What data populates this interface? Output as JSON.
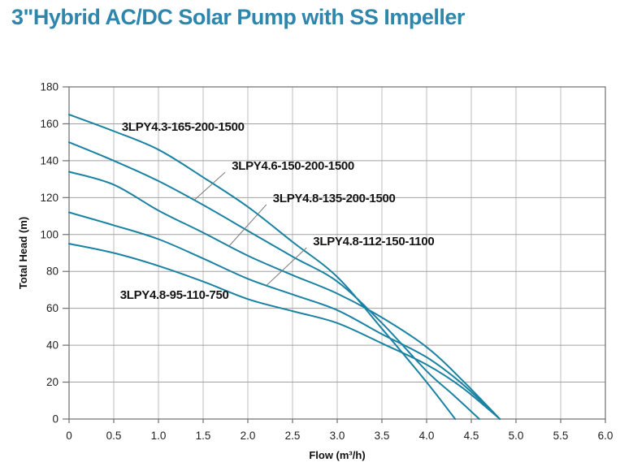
{
  "page": {
    "title": "3\"Hybrid AC/DC Solar Pump with SS Impeller",
    "title_color": "#2e86ac",
    "background_color": "#ffffff"
  },
  "chart_data": {
    "type": "line",
    "title": "",
    "xlabel": "Flow (m³/h)",
    "ylabel": "Total Head (m)",
    "xlim": [
      0,
      6.0
    ],
    "ylim": [
      0,
      180
    ],
    "x_ticks": [
      "0",
      "0.5",
      "1.0",
      "1.5",
      "2.0",
      "2.5",
      "3.0",
      "3.5",
      "4.0",
      "4.5",
      "5.0",
      "5.5",
      "6.0"
    ],
    "y_ticks": [
      "0",
      "20",
      "40",
      "60",
      "80",
      "100",
      "120",
      "140",
      "160",
      "180"
    ],
    "grid": true,
    "legend_position": "inline-curve-labels",
    "line_color": "#1a82a2",
    "grid_color_vertical": "#bdbdbd",
    "grid_color_horizontal": "#a0a0a0",
    "axis_color": "#6e6e6e",
    "leader_color": "#7a7a7a",
    "series": [
      {
        "name": "3LPY4.3-165-200-1500",
        "points": [
          [
            0,
            165
          ],
          [
            0.5,
            156
          ],
          [
            1.0,
            146
          ],
          [
            1.5,
            131
          ],
          [
            2.0,
            115
          ],
          [
            2.5,
            96
          ],
          [
            3.0,
            77
          ],
          [
            3.5,
            49
          ],
          [
            4.0,
            20
          ],
          [
            4.32,
            0
          ]
        ],
        "max_head_m": 165,
        "max_flow_m3h": 4.32,
        "label": {
          "flow": 0.59,
          "head": 156.2,
          "leader_to_flow": null
        }
      },
      {
        "name": "3LPY4.6-150-200-1500",
        "points": [
          [
            0,
            150
          ],
          [
            0.5,
            140
          ],
          [
            1.0,
            129
          ],
          [
            1.5,
            116
          ],
          [
            2.0,
            102
          ],
          [
            2.5,
            88
          ],
          [
            3.0,
            74.5
          ],
          [
            3.5,
            52
          ],
          [
            4.0,
            26
          ],
          [
            4.3,
            13
          ],
          [
            4.59,
            0
          ]
        ],
        "max_head_m": 150,
        "max_flow_m3h": 4.59,
        "label": {
          "flow": 1.82,
          "head": 135.1,
          "leader_to_flow": 1.4
        }
      },
      {
        "name": "3LPY4.8-135-200-1500",
        "points": [
          [
            0,
            134
          ],
          [
            0.5,
            127
          ],
          [
            1.0,
            113
          ],
          [
            1.5,
            101
          ],
          [
            2.0,
            88.5
          ],
          [
            2.5,
            78
          ],
          [
            3.0,
            68
          ],
          [
            3.5,
            55
          ],
          [
            4.0,
            39
          ],
          [
            4.4,
            21
          ],
          [
            4.82,
            0
          ]
        ],
        "max_head_m": 134,
        "max_flow_m3h": 4.82,
        "label": {
          "flow": 2.28,
          "head": 117.5,
          "leader_to_flow": 1.79
        }
      },
      {
        "name": "3LPY4.8-112-150-1100",
        "points": [
          [
            0,
            112
          ],
          [
            0.5,
            105
          ],
          [
            1.0,
            97.5
          ],
          [
            1.5,
            87
          ],
          [
            2.0,
            76
          ],
          [
            2.5,
            67.5
          ],
          [
            3.0,
            59
          ],
          [
            3.5,
            46
          ],
          [
            4.0,
            33.5
          ],
          [
            4.4,
            19
          ],
          [
            4.82,
            0
          ]
        ],
        "max_head_m": 112,
        "max_flow_m3h": 4.82,
        "label": {
          "flow": 2.73,
          "head": 94.2,
          "leader_to_flow": 2.21
        }
      },
      {
        "name": "3LPY4.8-95-110-750",
        "points": [
          [
            0,
            95
          ],
          [
            0.5,
            90
          ],
          [
            1.0,
            83
          ],
          [
            1.5,
            74.5
          ],
          [
            2.0,
            65
          ],
          [
            2.5,
            58.5
          ],
          [
            3.0,
            52
          ],
          [
            3.5,
            41
          ],
          [
            4.0,
            29.5
          ],
          [
            4.4,
            17
          ],
          [
            4.82,
            0
          ]
        ],
        "max_head_m": 95,
        "max_flow_m3h": 4.82,
        "label": {
          "flow": 0.57,
          "head": 65.1,
          "leader_to_flow": null
        }
      }
    ]
  }
}
